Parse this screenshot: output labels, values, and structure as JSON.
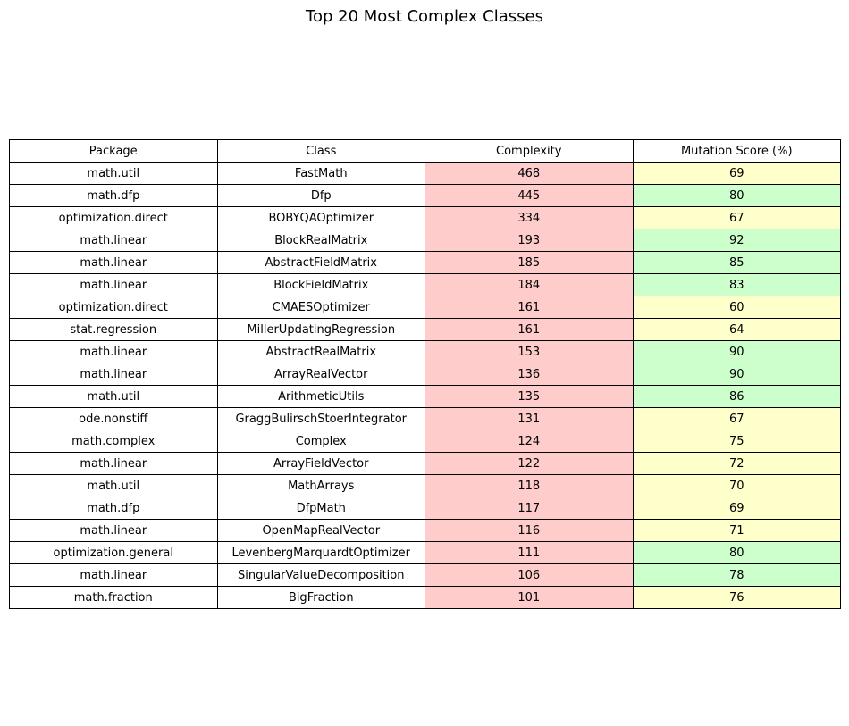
{
  "chart_data": {
    "type": "table",
    "title": "Top 20 Most Complex Classes",
    "columns": [
      "Package",
      "Class",
      "Complexity",
      "Mutation Score (%)"
    ],
    "colors": {
      "complexity_cell": "#ffcccc",
      "mutation_high": "#ccffcc",
      "mutation_mid": "#ffffcc"
    },
    "rows": [
      {
        "package": "math.util",
        "class": "FastMath",
        "complexity": 468,
        "mutation_score": 69
      },
      {
        "package": "math.dfp",
        "class": "Dfp",
        "complexity": 445,
        "mutation_score": 80
      },
      {
        "package": "optimization.direct",
        "class": "BOBYQAOptimizer",
        "complexity": 334,
        "mutation_score": 67
      },
      {
        "package": "math.linear",
        "class": "BlockRealMatrix",
        "complexity": 193,
        "mutation_score": 92
      },
      {
        "package": "math.linear",
        "class": "AbstractFieldMatrix",
        "complexity": 185,
        "mutation_score": 85
      },
      {
        "package": "math.linear",
        "class": "BlockFieldMatrix",
        "complexity": 184,
        "mutation_score": 83
      },
      {
        "package": "optimization.direct",
        "class": "CMAESOptimizer",
        "complexity": 161,
        "mutation_score": 60
      },
      {
        "package": "stat.regression",
        "class": "MillerUpdatingRegression",
        "complexity": 161,
        "mutation_score": 64
      },
      {
        "package": "math.linear",
        "class": "AbstractRealMatrix",
        "complexity": 153,
        "mutation_score": 90
      },
      {
        "package": "math.linear",
        "class": "ArrayRealVector",
        "complexity": 136,
        "mutation_score": 90
      },
      {
        "package": "math.util",
        "class": "ArithmeticUtils",
        "complexity": 135,
        "mutation_score": 86
      },
      {
        "package": "ode.nonstiff",
        "class": "GraggBulirschStoerIntegrator",
        "complexity": 131,
        "mutation_score": 67
      },
      {
        "package": "math.complex",
        "class": "Complex",
        "complexity": 124,
        "mutation_score": 75
      },
      {
        "package": "math.linear",
        "class": "ArrayFieldVector",
        "complexity": 122,
        "mutation_score": 72
      },
      {
        "package": "math.util",
        "class": "MathArrays",
        "complexity": 118,
        "mutation_score": 70
      },
      {
        "package": "math.dfp",
        "class": "DfpMath",
        "complexity": 117,
        "mutation_score": 69
      },
      {
        "package": "math.linear",
        "class": "OpenMapRealVector",
        "complexity": 116,
        "mutation_score": 71
      },
      {
        "package": "optimization.general",
        "class": "LevenbergMarquardtOptimizer",
        "complexity": 111,
        "mutation_score": 80
      },
      {
        "package": "math.linear",
        "class": "SingularValueDecomposition",
        "complexity": 106,
        "mutation_score": 78
      },
      {
        "package": "math.fraction",
        "class": "BigFraction",
        "complexity": 101,
        "mutation_score": 76
      }
    ]
  }
}
